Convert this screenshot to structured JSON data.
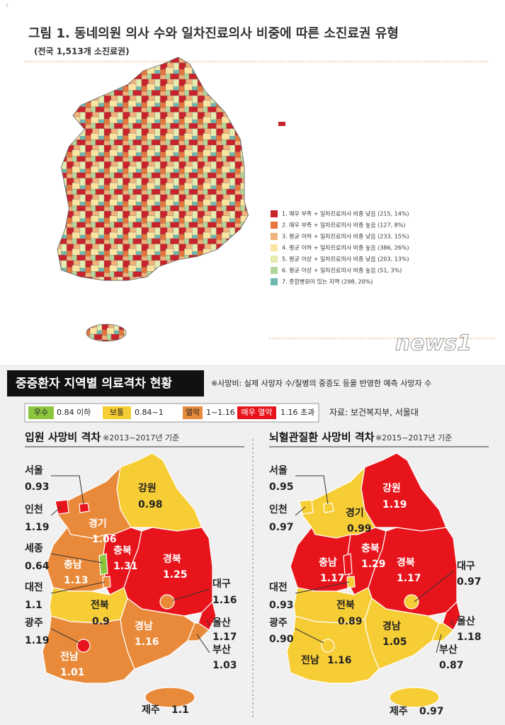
{
  "top": {
    "title": "그림 1. 동네의원 의사 수와 일차진료의사 비중에 따른 소진료권 유형",
    "subtitle": "(전국 1,513개 소진료권)",
    "legend": [
      {
        "label": "1. 매우 부족 + 일차진료의사 비중 낮음 (215, 14%)",
        "color": "#c8232b"
      },
      {
        "label": "2. 매우 부족 + 일차진료의사 비중 높음 (127, 8%)",
        "color": "#e4763b"
      },
      {
        "label": "3. 평균 이하 + 일차진료의사 비중 낮음 (233, 15%)",
        "color": "#f1b27a"
      },
      {
        "label": "4. 평균 이하 + 일차진료의사 비중 높음 (386, 26%)",
        "color": "#fbe3a0"
      },
      {
        "label": "5. 평균 이상 + 일차진료의사 비중 낮음 (203, 13%)",
        "color": "#e6ecb0"
      },
      {
        "label": "6. 평균 이상 + 일차진료의사 비중 높음 (51, 3%)",
        "color": "#b5d69b"
      },
      {
        "label": "7. 종합병원이 있는 지역 (298, 20%)",
        "color": "#6fb8b0"
      }
    ],
    "watermark": "news1"
  },
  "bottom": {
    "title": "중증환자 지역별 의료격차 현황",
    "note": "※사망비: 실제 사망자 수/질병의 중증도 등을 반영한 예측 사망자 수",
    "legend": [
      {
        "label": "우수",
        "range": "0.84 이하",
        "color": "#8cc63f"
      },
      {
        "label": "보통",
        "range": "0.84~1",
        "color": "#f7cd35"
      },
      {
        "label": "열악",
        "range": "1~1.16",
        "color": "#e98a3a"
      },
      {
        "label": "매우 열악",
        "range": "1.16 초과",
        "color": "#e8141b"
      }
    ],
    "source": "자료: 보건복지부, 서울대",
    "maps": [
      {
        "title": "입원 사망비 격차",
        "basis": "※2013~2017년 기준",
        "regions": [
          {
            "name": "서울",
            "value": "0.93"
          },
          {
            "name": "인천",
            "value": "1.19"
          },
          {
            "name": "세종",
            "value": "0.64"
          },
          {
            "name": "대전",
            "value": "1.1"
          },
          {
            "name": "광주",
            "value": "1.19"
          },
          {
            "name": "경기",
            "value": "1.06"
          },
          {
            "name": "강원",
            "value": "0.98"
          },
          {
            "name": "충남",
            "value": "1.13"
          },
          {
            "name": "충북",
            "value": "1.31"
          },
          {
            "name": "경북",
            "value": "1.25"
          },
          {
            "name": "대구",
            "value": "1.16"
          },
          {
            "name": "전북",
            "value": "0.9"
          },
          {
            "name": "울산",
            "value": "1.17"
          },
          {
            "name": "경남",
            "value": "1.16"
          },
          {
            "name": "부산",
            "value": "1.03"
          },
          {
            "name": "전남",
            "value": "1.01"
          },
          {
            "name": "제주",
            "value": "1.1"
          }
        ]
      },
      {
        "title": "뇌혈관질환 사망비 격차",
        "basis": "※2015~2017년 기준",
        "regions": [
          {
            "name": "서울",
            "value": "0.95"
          },
          {
            "name": "인천",
            "value": "0.97"
          },
          {
            "name": "대전",
            "value": "0.93"
          },
          {
            "name": "광주",
            "value": "0.90"
          },
          {
            "name": "경기",
            "value": "0.99"
          },
          {
            "name": "강원",
            "value": "1.19"
          },
          {
            "name": "충남",
            "value": "1.17"
          },
          {
            "name": "충북",
            "value": "1.29"
          },
          {
            "name": "경북",
            "value": "1.17"
          },
          {
            "name": "대구",
            "value": "0.97"
          },
          {
            "name": "전북",
            "value": "0.89"
          },
          {
            "name": "울산",
            "value": "1.18"
          },
          {
            "name": "경남",
            "value": "1.05"
          },
          {
            "name": "전남",
            "value": "1.16"
          },
          {
            "name": "부산",
            "value": "0.87"
          },
          {
            "name": "제주",
            "value": "0.97"
          }
        ]
      }
    ]
  }
}
